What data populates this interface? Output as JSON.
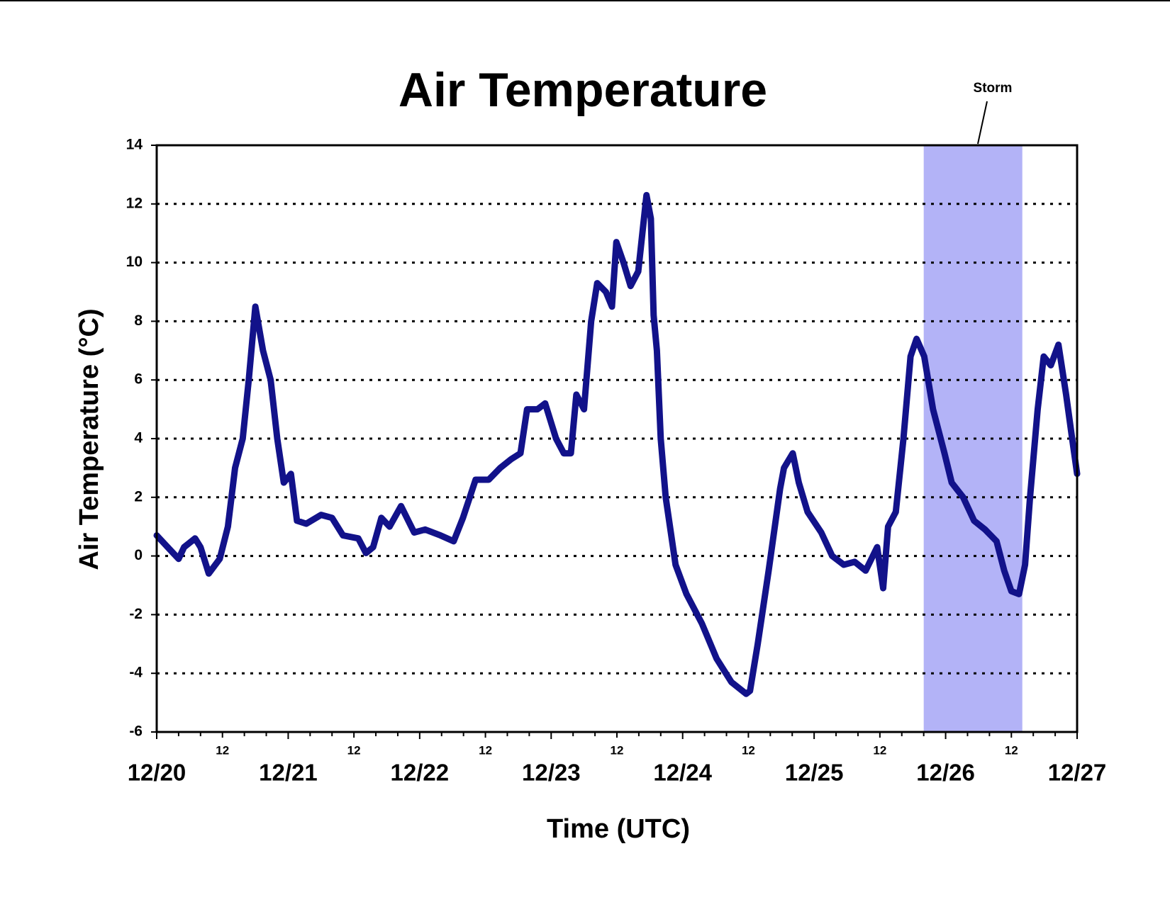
{
  "chart_data": {
    "type": "line",
    "title": "Air Temperature",
    "y_label": "Air Temperature (°C)",
    "x_label": "Time (UTC)",
    "annotation": {
      "text": "Storm",
      "span": [
        140,
        158
      ],
      "color": "#b3b3f7"
    },
    "xlim": [
      0,
      168
    ],
    "xticks": [
      {
        "value": 0,
        "label": "12/20"
      },
      {
        "value": 24,
        "label": "12/21"
      },
      {
        "value": 48,
        "label": "12/22"
      },
      {
        "value": 72,
        "label": "12/23"
      },
      {
        "value": 96,
        "label": "12/24"
      },
      {
        "value": 120,
        "label": "12/25"
      },
      {
        "value": 144,
        "label": "12/26"
      },
      {
        "value": 168,
        "label": "12/27"
      }
    ],
    "xticks_hours": [
      {
        "value": 12,
        "label": "12"
      },
      {
        "value": 36,
        "label": "12"
      },
      {
        "value": 60,
        "label": "12"
      },
      {
        "value": 84,
        "label": "12"
      },
      {
        "value": 108,
        "label": "12"
      },
      {
        "value": 132,
        "label": "12"
      },
      {
        "value": 156,
        "label": "12"
      }
    ],
    "xminorticks": [
      4,
      8,
      16,
      20,
      28,
      32,
      40,
      44,
      52,
      56,
      64,
      68,
      76,
      80,
      88,
      92,
      100,
      104,
      112,
      116,
      124,
      128,
      136,
      140,
      148,
      152,
      160,
      164
    ],
    "ylim": [
      -6,
      14
    ],
    "yticks": [
      -6,
      -4,
      -2,
      0,
      2,
      4,
      6,
      8,
      10,
      12,
      14
    ],
    "grid": true,
    "series": [
      {
        "name": "Air Temperature",
        "color": "#12128a",
        "x": [
          0,
          3,
          4,
          5,
          7,
          8,
          9.5,
          11.5,
          13,
          14.3,
          15.7,
          16.8,
          18,
          19.4,
          20.8,
          22,
          23.2,
          24.5,
          25.6,
          27.3,
          30,
          32,
          34,
          36.8,
          38.2,
          39.5,
          41,
          42.5,
          44.6,
          47,
          49,
          51.8,
          54.2,
          55.9,
          58.2,
          60.6,
          62.7,
          64.7,
          66.4,
          67.6,
          69.5,
          70.9,
          72.9,
          74.3,
          75.6,
          76.6,
          78,
          79.3,
          80.4,
          82,
          83.1,
          83.9,
          85.2,
          86.5,
          87.9,
          89.4,
          90.2,
          90.7,
          91.3,
          92,
          92.9,
          94.7,
          96.7,
          99.5,
          102.2,
          104.9,
          107.6,
          108.3,
          109.7,
          111.7,
          113.8,
          114.5,
          116.1,
          117.2,
          118.8,
          121.3,
          123.3,
          125.4,
          127.4,
          129.4,
          131.5,
          132.6,
          133.5,
          134.9,
          136.3,
          137.6,
          138.7,
          140.1,
          141.7,
          143.8,
          145.1,
          147.2,
          149.2,
          151.2,
          153.3,
          154.7,
          156,
          157.4,
          158.5,
          159.4,
          160.8,
          161.9,
          163.2,
          164.6,
          166,
          167.1,
          168
        ],
        "values": [
          0.7,
          0.1,
          -0.1,
          0.3,
          0.6,
          0.3,
          -0.6,
          -0.1,
          1.0,
          3.0,
          4.0,
          6.0,
          8.5,
          7.0,
          6.0,
          4.0,
          2.5,
          2.8,
          1.2,
          1.1,
          1.4,
          1.3,
          0.7,
          0.6,
          0.1,
          0.3,
          1.3,
          1.0,
          1.7,
          0.8,
          0.9,
          0.7,
          0.5,
          1.3,
          2.6,
          2.6,
          3.0,
          3.3,
          3.5,
          5.0,
          5.0,
          5.2,
          4.0,
          3.5,
          3.5,
          5.5,
          5.0,
          8.0,
          9.3,
          9.0,
          8.5,
          10.7,
          10.0,
          9.2,
          9.7,
          12.3,
          11.5,
          8.2,
          7.0,
          4.0,
          2.0,
          -0.3,
          -1.3,
          -2.3,
          -3.5,
          -4.3,
          -4.7,
          -4.6,
          -3.0,
          -0.5,
          2.3,
          3.0,
          3.5,
          2.5,
          1.5,
          0.8,
          0.0,
          -0.3,
          -0.2,
          -0.5,
          0.3,
          -1.1,
          1.0,
          1.5,
          4.0,
          6.8,
          7.4,
          6.8,
          5.0,
          3.5,
          2.5,
          2.0,
          1.2,
          0.9,
          0.5,
          -0.5,
          -1.2,
          -1.3,
          -0.3,
          2.0,
          5.0,
          6.8,
          6.5,
          7.2,
          5.5,
          4.0,
          2.8
        ]
      }
    ]
  }
}
